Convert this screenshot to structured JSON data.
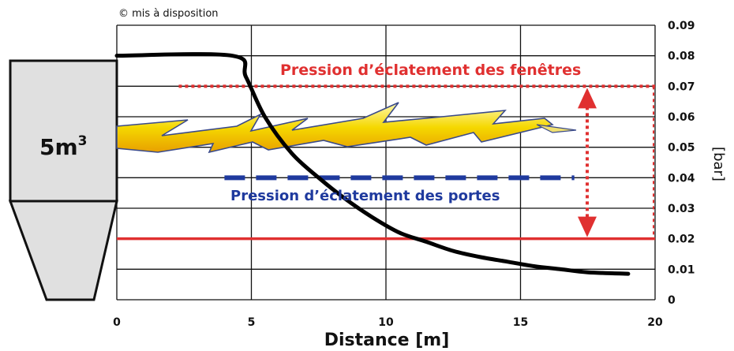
{
  "credit": "© mis à disposition",
  "silo": {
    "label": "5m",
    "sup": "3"
  },
  "chart_data": {
    "type": "line",
    "xlabel": "Distance [m]",
    "ylabel": "[bar]",
    "xlim": [
      0,
      20
    ],
    "ylim": [
      0,
      0.09
    ],
    "x_ticks": [
      0,
      5,
      10,
      15,
      20
    ],
    "y_ticks": [
      0,
      0.01,
      0.02,
      0.03,
      0.04,
      0.05,
      0.06,
      0.07,
      0.08,
      0.09
    ],
    "grid": true,
    "series": [
      {
        "color": "#000000",
        "x": [
          0,
          4.3,
          4.8,
          5.5,
          6.5,
          7.5,
          8.5,
          9.5,
          10.5,
          11.5,
          12.5,
          13.5,
          14.5,
          15.5,
          16.5,
          17.5,
          19
        ],
        "y": [
          0.08,
          0.08,
          0.073,
          0.06,
          0.048,
          0.04,
          0.033,
          0.027,
          0.022,
          0.019,
          0.016,
          0.014,
          0.0125,
          0.011,
          0.01,
          0.009,
          0.0085
        ]
      }
    ],
    "annotations": [
      {
        "text": "Pression d’éclatement des fenêtres",
        "y": 0.07,
        "color": "#e03030",
        "style": "dotted",
        "x_start": 2.3,
        "x_end": 20
      },
      {
        "text": "Pression d’éclatement des portes",
        "y": 0.04,
        "color": "#1f3a9e",
        "style": "dashed",
        "x_start": 4,
        "x_end": 17
      },
      {
        "text": "",
        "y": 0.02,
        "color": "#e03030",
        "style": "solid",
        "x_start": 0,
        "x_end": 20
      }
    ]
  }
}
